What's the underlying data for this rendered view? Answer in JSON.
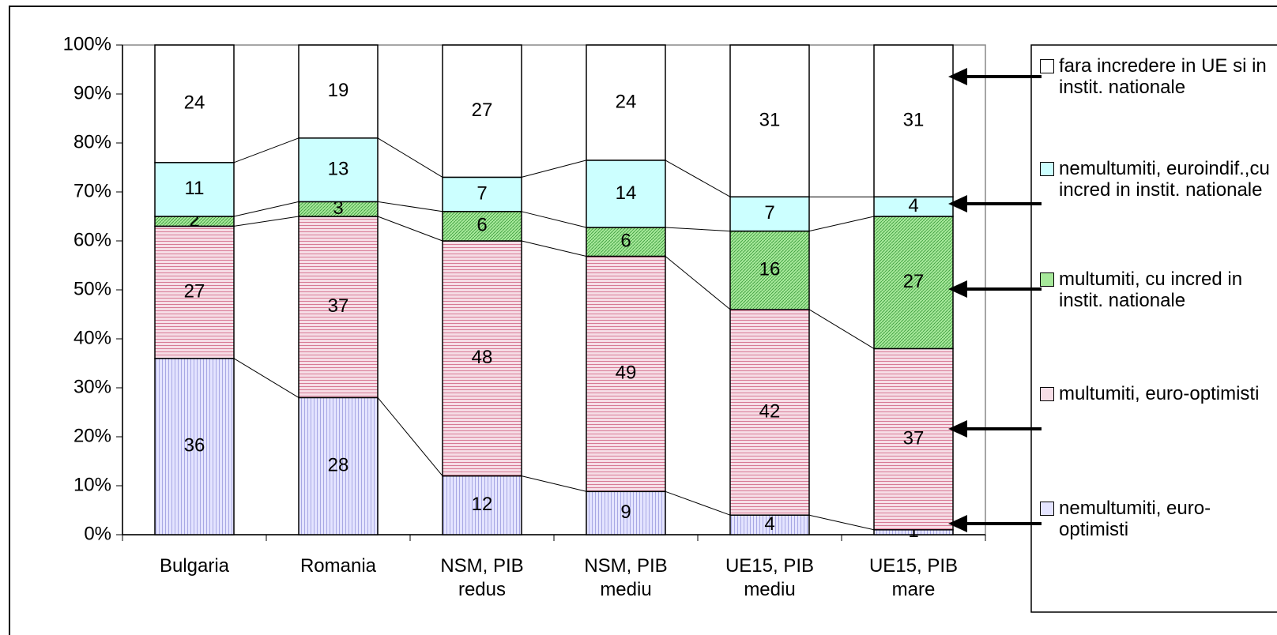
{
  "chart_data": {
    "type": "bar",
    "stacking": "percent",
    "categories": [
      "Bulgaria",
      "Romania",
      "NSM, PIB redus",
      "NSM, PIB mediu",
      "UE15, PIB mediu",
      "UE15, PIB mare"
    ],
    "series": [
      {
        "name": "nemultumiti, euro-optimisti",
        "color": "#e4e4ff",
        "values": [
          36,
          28,
          12,
          9,
          4,
          1
        ]
      },
      {
        "name": "multumiti, euro-optimisti",
        "color": "#f6dde6",
        "values": [
          27,
          37,
          48,
          49,
          42,
          37
        ]
      },
      {
        "name": "multumiti, cu incred in instit. nationale",
        "color": "#a6e89a",
        "values": [
          2,
          3,
          6,
          6,
          16,
          27
        ]
      },
      {
        "name": "nemultumiti, euroindif.,cu incred in instit. nationale",
        "color": "#ccffff",
        "values": [
          11,
          13,
          7,
          14,
          7,
          4
        ]
      },
      {
        "name": "fara incredere in UE si in instit. nationale",
        "color": "#ffffff",
        "values": [
          24,
          19,
          27,
          24,
          31,
          31
        ]
      }
    ],
    "ylim": [
      0,
      100
    ],
    "yticks": [
      {
        "value": 0,
        "label": "0%"
      },
      {
        "value": 10,
        "label": "10%"
      },
      {
        "value": 20,
        "label": "20%"
      },
      {
        "value": 30,
        "label": "30%"
      },
      {
        "value": 40,
        "label": "40%"
      },
      {
        "value": 50,
        "label": "50%"
      },
      {
        "value": 60,
        "label": "60%"
      },
      {
        "value": 70,
        "label": "70%"
      },
      {
        "value": 80,
        "label": "80%"
      },
      {
        "value": 90,
        "label": "90%"
      },
      {
        "value": 100,
        "label": "100%"
      }
    ],
    "legend": "right"
  }
}
